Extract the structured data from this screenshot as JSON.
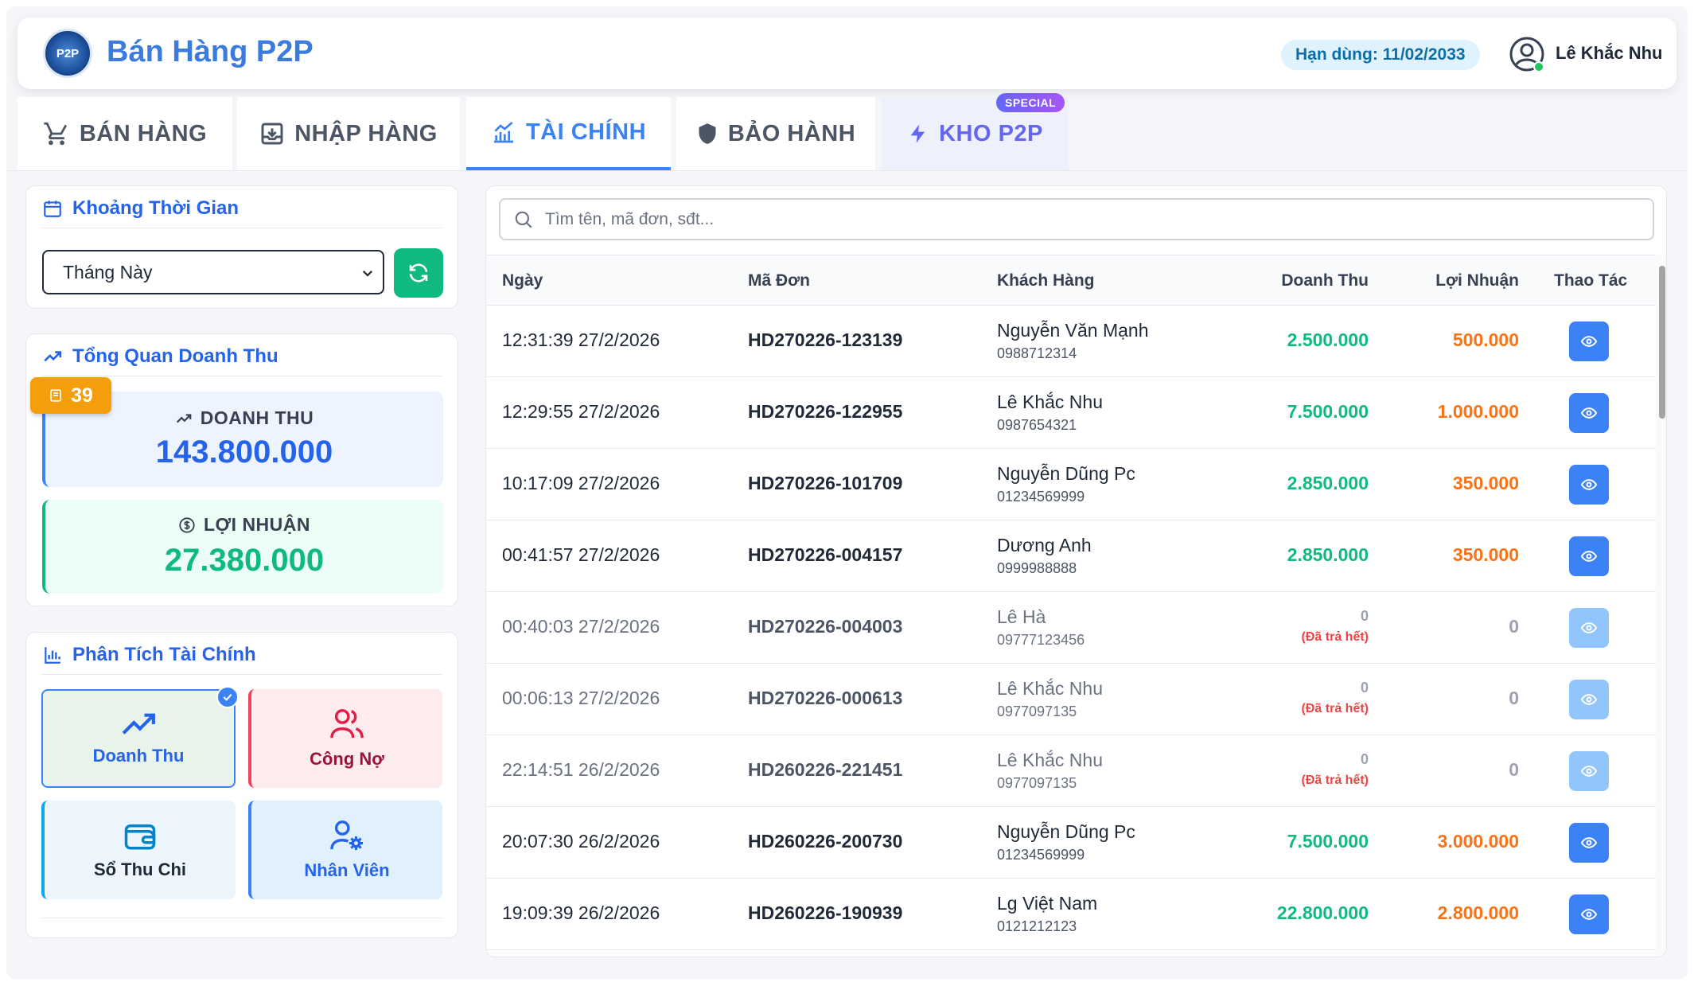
{
  "app": {
    "logo_text": "P2P",
    "title": "Bán Hàng P2P",
    "expiry": "Hạn dùng: 11/02/2033",
    "user": "Lê Khắc Nhu"
  },
  "tabs": [
    {
      "label": "BÁN HÀNG",
      "icon": "cart-icon"
    },
    {
      "label": "NHẬP HÀNG",
      "icon": "inbox-download-icon"
    },
    {
      "label": "TÀI CHÍNH",
      "icon": "chart-icon",
      "active": true
    },
    {
      "label": "BẢO HÀNH",
      "icon": "shield-icon"
    },
    {
      "label": "KHO P2P",
      "icon": "bolt-icon",
      "badge": "SPECIAL"
    }
  ],
  "time_panel": {
    "title": "Khoảng Thời Gian",
    "selected": "Tháng Này"
  },
  "overview": {
    "title": "Tổng Quan Doanh Thu",
    "order_count": "39",
    "revenue_label": "DOANH THU",
    "revenue_value": "143.800.000",
    "profit_label": "LỢI NHUẬN",
    "profit_value": "27.380.000"
  },
  "analysis": {
    "title": "Phân Tích Tài Chính",
    "cards": [
      "Doanh Thu",
      "Công Nợ",
      "Sổ Thu Chi",
      "Nhân Viên"
    ]
  },
  "search": {
    "placeholder": "Tìm tên, mã đơn, sđt..."
  },
  "table": {
    "headers": [
      "Ngày",
      "Mã Đơn",
      "Khách Hàng",
      "Doanh Thu",
      "Lợi Nhuận",
      "Thao Tác"
    ],
    "rows": [
      {
        "date": "12:31:39 27/2/2026",
        "code": "HD270226-123139",
        "name": "Nguyễn Văn Mạnh",
        "phone": "0988712314",
        "revenue": "2.500.000",
        "profit": "500.000"
      },
      {
        "date": "12:29:55 27/2/2026",
        "code": "HD270226-122955",
        "name": "Lê Khắc Nhu",
        "phone": "0987654321",
        "revenue": "7.500.000",
        "profit": "1.000.000"
      },
      {
        "date": "10:17:09 27/2/2026",
        "code": "HD270226-101709",
        "name": "Nguyễn Dũng Pc",
        "phone": "01234569999",
        "revenue": "2.850.000",
        "profit": "350.000"
      },
      {
        "date": "00:41:57 27/2/2026",
        "code": "HD270226-004157",
        "name": "Dương Anh",
        "phone": "0999988888",
        "revenue": "2.850.000",
        "profit": "350.000"
      },
      {
        "date": "00:40:03 27/2/2026",
        "code": "HD270226-004003",
        "name": "Lê Hà",
        "phone": "09777123456",
        "revenue": "0",
        "note": "(Đã trả hết)",
        "profit": "0"
      },
      {
        "date": "00:06:13 27/2/2026",
        "code": "HD270226-000613",
        "name": "Lê Khắc Nhu",
        "phone": "0977097135",
        "revenue": "0",
        "note": "(Đã trả hết)",
        "profit": "0"
      },
      {
        "date": "22:14:51 26/2/2026",
        "code": "HD260226-221451",
        "name": "Lê Khắc Nhu",
        "phone": "0977097135",
        "revenue": "0",
        "note": "(Đã trả hết)",
        "profit": "0"
      },
      {
        "date": "20:07:30 26/2/2026",
        "code": "HD260226-200730",
        "name": "Nguyễn Dũng Pc",
        "phone": "01234569999",
        "revenue": "7.500.000",
        "profit": "3.000.000"
      },
      {
        "date": "19:09:39 26/2/2026",
        "code": "HD260226-190939",
        "name": "Lg Việt Nam",
        "phone": "0121212123",
        "revenue": "22.800.000",
        "profit": "2.800.000"
      }
    ]
  },
  "colors": {
    "primary": "#3b82f6",
    "revenue": "#10b981",
    "profit": "#f97316",
    "warning": "#f59e0b",
    "danger": "#ef4444"
  }
}
